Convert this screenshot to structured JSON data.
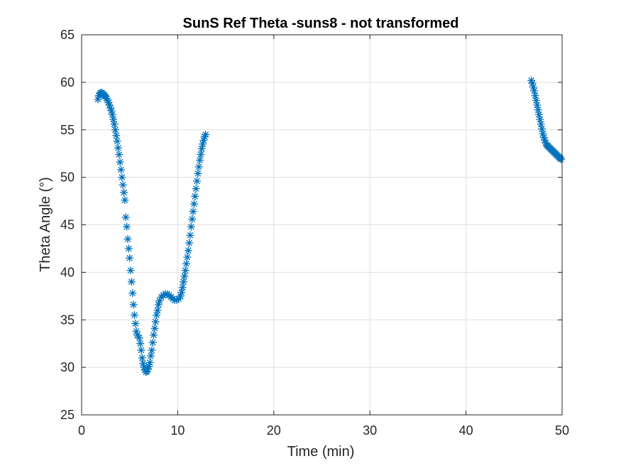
{
  "chart_data": {
    "type": "scatter",
    "title": "SunS Ref Theta -suns8 - not transformed",
    "xlabel": "Time (min)",
    "ylabel": "Theta Angle (°)",
    "xlim": [
      0,
      50
    ],
    "ylim": [
      25,
      65
    ],
    "xticks": [
      0,
      10,
      20,
      30,
      40,
      50
    ],
    "yticks": [
      25,
      30,
      35,
      40,
      45,
      50,
      55,
      60,
      65
    ],
    "grid": true,
    "marker": "asterisk",
    "color": "#0072BD",
    "series": [
      {
        "points": [
          [
            1.7,
            58.2
          ],
          [
            1.8,
            58.6
          ],
          [
            1.9,
            58.8
          ],
          [
            2.0,
            58.9
          ],
          [
            2.1,
            58.9
          ],
          [
            2.2,
            58.8
          ],
          [
            2.3,
            58.7
          ],
          [
            2.4,
            58.6
          ],
          [
            2.5,
            58.5
          ],
          [
            2.6,
            58.3
          ],
          [
            2.7,
            58.1
          ],
          [
            2.8,
            57.9
          ],
          [
            2.9,
            57.6
          ],
          [
            3.0,
            57.3
          ],
          [
            3.1,
            57.0
          ],
          [
            3.2,
            56.6
          ],
          [
            3.3,
            56.1
          ],
          [
            3.4,
            55.6
          ],
          [
            3.5,
            55.0
          ],
          [
            3.6,
            54.4
          ],
          [
            3.7,
            53.8
          ],
          [
            3.8,
            53.1
          ],
          [
            3.9,
            52.4
          ],
          [
            4.0,
            51.6
          ],
          [
            4.1,
            50.8
          ],
          [
            4.2,
            50.0
          ],
          [
            4.3,
            49.2
          ],
          [
            4.4,
            48.4
          ],
          [
            4.5,
            47.6
          ],
          [
            4.6,
            45.8
          ],
          [
            4.7,
            44.8
          ],
          [
            4.8,
            43.5
          ],
          [
            4.9,
            42.5
          ],
          [
            5.0,
            41.5
          ],
          [
            5.1,
            40.2
          ],
          [
            5.2,
            39.0
          ],
          [
            5.3,
            37.8
          ],
          [
            5.4,
            36.6
          ],
          [
            5.5,
            35.5
          ],
          [
            5.6,
            34.6
          ],
          [
            5.7,
            33.8
          ],
          [
            5.8,
            33.4
          ],
          [
            6.0,
            33.1
          ],
          [
            6.1,
            32.5
          ],
          [
            6.2,
            31.8
          ],
          [
            6.3,
            31.0
          ],
          [
            6.4,
            30.4
          ],
          [
            6.5,
            30.0
          ],
          [
            6.6,
            29.7
          ],
          [
            6.7,
            29.5
          ],
          [
            6.8,
            29.6
          ],
          [
            6.9,
            29.8
          ],
          [
            7.0,
            30.1
          ],
          [
            7.1,
            30.5
          ],
          [
            7.2,
            31.2
          ],
          [
            7.3,
            31.8
          ],
          [
            7.4,
            32.6
          ],
          [
            7.5,
            33.4
          ],
          [
            7.6,
            34.1
          ],
          [
            7.7,
            34.8
          ],
          [
            7.8,
            35.5
          ],
          [
            7.9,
            36.0
          ],
          [
            8.0,
            36.6
          ],
          [
            8.1,
            37.0
          ],
          [
            8.3,
            37.4
          ],
          [
            8.5,
            37.6
          ],
          [
            8.7,
            37.7
          ],
          [
            8.9,
            37.7
          ],
          [
            9.1,
            37.6
          ],
          [
            9.3,
            37.4
          ],
          [
            9.5,
            37.2
          ],
          [
            9.7,
            37.1
          ],
          [
            9.9,
            37.1
          ],
          [
            10.1,
            37.2
          ],
          [
            10.3,
            37.5
          ],
          [
            10.4,
            37.9
          ],
          [
            10.5,
            38.4
          ],
          [
            10.6,
            39.0
          ],
          [
            10.7,
            39.6
          ],
          [
            10.8,
            40.2
          ],
          [
            10.9,
            40.9
          ],
          [
            11.0,
            41.6
          ],
          [
            11.1,
            42.3
          ],
          [
            11.2,
            43.1
          ],
          [
            11.3,
            43.9
          ],
          [
            11.4,
            44.8
          ],
          [
            11.5,
            45.6
          ],
          [
            11.6,
            46.4
          ],
          [
            11.7,
            47.2
          ],
          [
            11.8,
            48.0
          ],
          [
            11.9,
            48.8
          ],
          [
            12.0,
            49.6
          ],
          [
            12.1,
            50.4
          ],
          [
            12.2,
            51.1
          ],
          [
            12.3,
            51.8
          ],
          [
            12.4,
            52.4
          ],
          [
            12.5,
            53.0
          ],
          [
            12.6,
            53.5
          ],
          [
            12.7,
            53.9
          ],
          [
            12.8,
            54.3
          ],
          [
            12.9,
            54.5
          ],
          [
            46.8,
            60.2
          ],
          [
            46.9,
            59.9
          ],
          [
            47.0,
            59.5
          ],
          [
            47.1,
            59.1
          ],
          [
            47.2,
            58.6
          ],
          [
            47.3,
            58.1
          ],
          [
            47.4,
            57.6
          ],
          [
            47.5,
            57.1
          ],
          [
            47.6,
            56.6
          ],
          [
            47.7,
            56.1
          ],
          [
            47.8,
            55.6
          ],
          [
            47.9,
            55.1
          ],
          [
            48.0,
            54.6
          ],
          [
            48.1,
            54.2
          ],
          [
            48.2,
            53.9
          ],
          [
            48.3,
            53.6
          ],
          [
            48.4,
            53.4
          ],
          [
            48.5,
            53.3
          ],
          [
            48.6,
            53.2
          ],
          [
            48.7,
            53.1
          ],
          [
            48.8,
            53.0
          ],
          [
            48.9,
            52.9
          ],
          [
            49.0,
            52.8
          ],
          [
            49.1,
            52.7
          ],
          [
            49.2,
            52.6
          ],
          [
            49.3,
            52.5
          ],
          [
            49.4,
            52.4
          ],
          [
            49.5,
            52.3
          ],
          [
            49.6,
            52.2
          ],
          [
            49.7,
            52.1
          ],
          [
            49.8,
            52.0
          ],
          [
            49.9,
            51.9
          ]
        ]
      }
    ]
  }
}
